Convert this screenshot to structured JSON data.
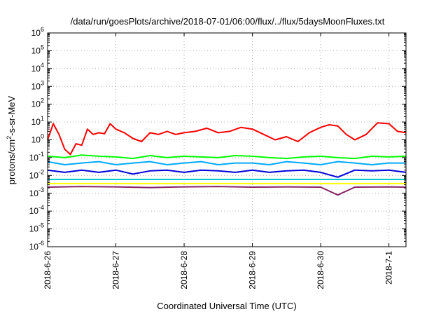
{
  "chart_data": {
    "type": "line",
    "title": "/data/run/goesPlots/archive/2018-07-01/06:00/flux/../flux/5daysMoonFluxes.txt",
    "xlabel": "Coordinated Universal Time (UTC)",
    "ylabel": "protons/cm2-s-sr-MeV",
    "ylabel_parts": {
      "prefix": "protons/cm",
      "sup": "2",
      "suffix": "-s-sr-MeV"
    },
    "y_scale": "log",
    "ylim": [
      1e-06,
      1000000.0
    ],
    "xlim": [
      "2018-06-26 00:00",
      "2018-07-01 06:00"
    ],
    "x_ticks": [
      "2018-6-26",
      "2018-6-27",
      "2018-6-28",
      "2018-6-29",
      "2018-6-30",
      "2018-7-1"
    ],
    "y_ticks": [
      {
        "base": "10",
        "exp": "6"
      },
      {
        "base": "10",
        "exp": "5"
      },
      {
        "base": "10",
        "exp": "4"
      },
      {
        "base": "10",
        "exp": "3"
      },
      {
        "base": "10",
        "exp": "2"
      },
      {
        "base": "10",
        "exp": "1"
      },
      {
        "base": "10",
        "exp": "0"
      },
      {
        "base": "10",
        "exp": "-1"
      },
      {
        "base": "10",
        "exp": "-2"
      },
      {
        "base": "10",
        "exp": "-3"
      },
      {
        "base": "10",
        "exp": "-4"
      },
      {
        "base": "10",
        "exp": "-5"
      },
      {
        "base": "10",
        "exp": "-6"
      }
    ],
    "grid": true,
    "legend": "none",
    "series": [
      {
        "color": "#ff0000",
        "x": [
          "2018-06-26 00:00",
          "2018-06-26 02:00",
          "2018-06-26 04:00",
          "2018-06-26 06:00",
          "2018-06-26 08:00",
          "2018-06-26 10:00",
          "2018-06-26 12:00",
          "2018-06-26 14:00",
          "2018-06-26 16:00",
          "2018-06-26 18:00",
          "2018-06-26 20:00",
          "2018-06-26 22:00",
          "2018-06-27 00:00",
          "2018-06-27 03:00",
          "2018-06-27 06:00",
          "2018-06-27 09:00",
          "2018-06-27 12:00",
          "2018-06-27 15:00",
          "2018-06-27 18:00",
          "2018-06-27 21:00",
          "2018-06-28 00:00",
          "2018-06-28 04:00",
          "2018-06-28 08:00",
          "2018-06-28 12:00",
          "2018-06-28 16:00",
          "2018-06-28 20:00",
          "2018-06-29 00:00",
          "2018-06-29 04:00",
          "2018-06-29 08:00",
          "2018-06-29 12:00",
          "2018-06-29 16:00",
          "2018-06-29 20:00",
          "2018-06-30 00:00",
          "2018-06-30 03:00",
          "2018-06-30 06:00",
          "2018-06-30 09:00",
          "2018-06-30 12:00",
          "2018-06-30 16:00",
          "2018-06-30 20:00",
          "2018-07-01 00:00",
          "2018-07-01 03:00",
          "2018-07-01 06:00"
        ],
        "y": [
          1.0,
          8.0,
          2.0,
          0.3,
          0.15,
          0.6,
          0.5,
          4.0,
          2.0,
          2.5,
          2.2,
          8.0,
          4.0,
          2.5,
          1.2,
          0.8,
          2.5,
          2.0,
          3.0,
          2.0,
          2.5,
          3.0,
          4.5,
          2.5,
          3.0,
          5.0,
          4.0,
          2.0,
          1.0,
          1.5,
          0.8,
          2.5,
          5.0,
          7.0,
          6.0,
          2.0,
          1.0,
          2.0,
          9.0,
          8.0,
          3.0,
          2.5
        ]
      },
      {
        "color": "#00ff00",
        "x": [
          "2018-06-26 00:00",
          "2018-06-26 06:00",
          "2018-06-26 12:00",
          "2018-06-26 18:00",
          "2018-06-27 00:00",
          "2018-06-27 06:00",
          "2018-06-27 12:00",
          "2018-06-27 18:00",
          "2018-06-28 00:00",
          "2018-06-28 06:00",
          "2018-06-28 12:00",
          "2018-06-28 18:00",
          "2018-06-29 00:00",
          "2018-06-29 06:00",
          "2018-06-29 12:00",
          "2018-06-29 18:00",
          "2018-06-30 00:00",
          "2018-06-30 06:00",
          "2018-06-30 12:00",
          "2018-06-30 18:00",
          "2018-07-01 00:00",
          "2018-07-01 06:00"
        ],
        "y": [
          0.12,
          0.1,
          0.14,
          0.12,
          0.11,
          0.09,
          0.13,
          0.1,
          0.12,
          0.11,
          0.1,
          0.13,
          0.12,
          0.1,
          0.09,
          0.11,
          0.12,
          0.1,
          0.09,
          0.12,
          0.11,
          0.12
        ]
      },
      {
        "color": "#00aaff",
        "x": [
          "2018-06-26 00:00",
          "2018-06-26 06:00",
          "2018-06-26 12:00",
          "2018-06-26 18:00",
          "2018-06-27 00:00",
          "2018-06-27 06:00",
          "2018-06-27 12:00",
          "2018-06-27 18:00",
          "2018-06-28 00:00",
          "2018-06-28 06:00",
          "2018-06-28 12:00",
          "2018-06-28 18:00",
          "2018-06-29 00:00",
          "2018-06-29 06:00",
          "2018-06-29 12:00",
          "2018-06-29 18:00",
          "2018-06-30 00:00",
          "2018-06-30 06:00",
          "2018-06-30 12:00",
          "2018-06-30 18:00",
          "2018-07-01 00:00",
          "2018-07-01 06:00"
        ],
        "y": [
          0.06,
          0.04,
          0.05,
          0.06,
          0.04,
          0.05,
          0.06,
          0.04,
          0.05,
          0.06,
          0.04,
          0.05,
          0.05,
          0.04,
          0.06,
          0.05,
          0.04,
          0.06,
          0.05,
          0.04,
          0.05,
          0.05
        ]
      },
      {
        "color": "#0000dd",
        "x": [
          "2018-06-26 00:00",
          "2018-06-26 06:00",
          "2018-06-26 12:00",
          "2018-06-26 18:00",
          "2018-06-27 00:00",
          "2018-06-27 06:00",
          "2018-06-27 12:00",
          "2018-06-27 18:00",
          "2018-06-28 00:00",
          "2018-06-28 06:00",
          "2018-06-28 12:00",
          "2018-06-28 18:00",
          "2018-06-29 00:00",
          "2018-06-29 06:00",
          "2018-06-29 12:00",
          "2018-06-29 18:00",
          "2018-06-30 00:00",
          "2018-06-30 06:00",
          "2018-06-30 12:00",
          "2018-06-30 18:00",
          "2018-07-01 00:00",
          "2018-07-01 06:00"
        ],
        "y": [
          0.02,
          0.015,
          0.02,
          0.015,
          0.02,
          0.012,
          0.018,
          0.02,
          0.015,
          0.02,
          0.018,
          0.015,
          0.02,
          0.015,
          0.018,
          0.02,
          0.015,
          0.008,
          0.02,
          0.018,
          0.02,
          0.015
        ]
      },
      {
        "color": "#00cccc",
        "x": [
          "2018-06-26 00:00",
          "2018-06-26 12:00",
          "2018-06-27 00:00",
          "2018-06-27 12:00",
          "2018-06-28 00:00",
          "2018-06-28 12:00",
          "2018-06-29 00:00",
          "2018-06-29 12:00",
          "2018-06-30 00:00",
          "2018-06-30 12:00",
          "2018-07-01 00:00",
          "2018-07-01 06:00"
        ],
        "y": [
          0.006,
          0.006,
          0.006,
          0.006,
          0.006,
          0.006,
          0.006,
          0.006,
          0.006,
          0.006,
          0.006,
          0.006
        ]
      },
      {
        "color": "#ffff00",
        "x": [
          "2018-06-26 00:00",
          "2018-06-26 12:00",
          "2018-06-27 00:00",
          "2018-06-27 12:00",
          "2018-06-28 00:00",
          "2018-06-28 12:00",
          "2018-06-29 00:00",
          "2018-06-29 12:00",
          "2018-06-30 00:00",
          "2018-06-30 12:00",
          "2018-07-01 00:00",
          "2018-07-01 06:00"
        ],
        "y": [
          0.0035,
          0.0035,
          0.0035,
          0.0035,
          0.0035,
          0.0035,
          0.0035,
          0.0035,
          0.0035,
          0.0035,
          0.0035,
          0.0035
        ]
      },
      {
        "color": "#882266",
        "x": [
          "2018-06-26 00:00",
          "2018-06-26 12:00",
          "2018-06-27 00:00",
          "2018-06-27 12:00",
          "2018-06-28 00:00",
          "2018-06-28 12:00",
          "2018-06-29 00:00",
          "2018-06-29 12:00",
          "2018-06-30 00:00",
          "2018-06-30 06:00",
          "2018-06-30 12:00",
          "2018-07-01 00:00",
          "2018-07-01 06:00"
        ],
        "y": [
          0.0022,
          0.0024,
          0.0023,
          0.0021,
          0.0023,
          0.0024,
          0.0022,
          0.0023,
          0.0022,
          0.0008,
          0.0022,
          0.0023,
          0.0022
        ]
      }
    ]
  }
}
